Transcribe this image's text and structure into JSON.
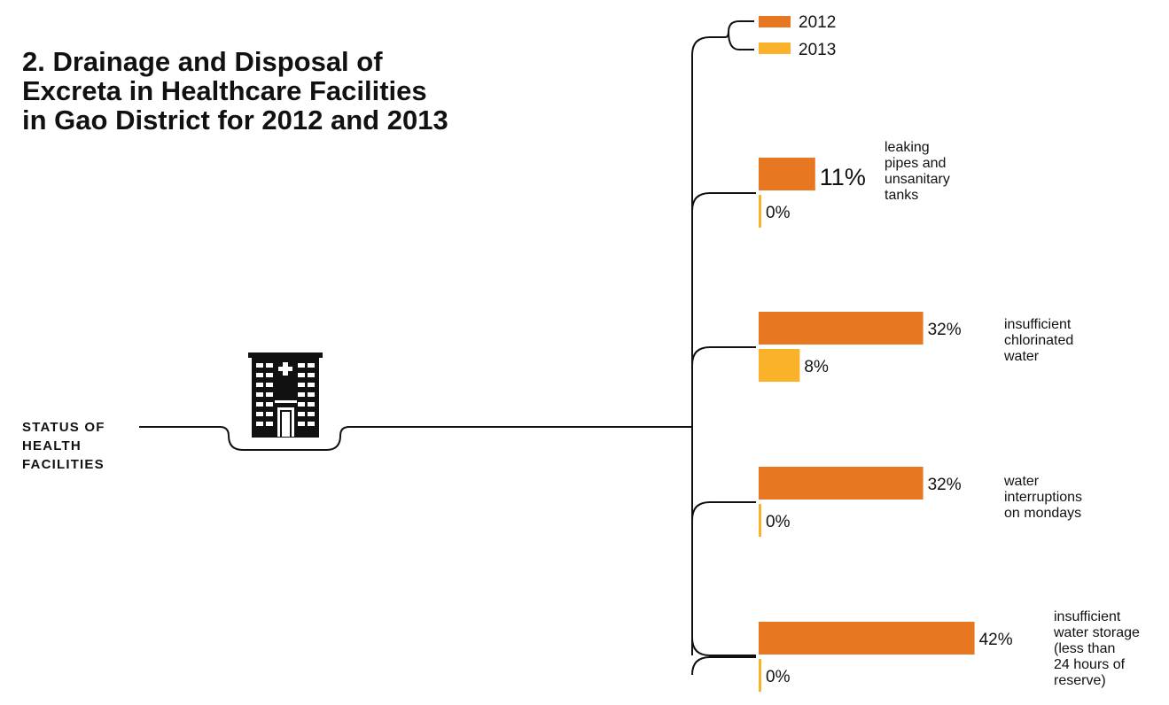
{
  "title_lines": [
    "2. Drainage and Disposal of",
    "Excreta in Healthcare Facilities",
    "in Gao District for 2012 and 2013"
  ],
  "status_label_lines": [
    "STATUS OF",
    "HEALTH",
    "FACILITIES"
  ],
  "icon": "hospital-building-icon",
  "colors": {
    "2012": "#E87722",
    "2013": "#FBB22B",
    "line": "#111111"
  },
  "chart_data": {
    "type": "bar",
    "orientation": "horizontal",
    "legend_position": "top-right",
    "value_unit": "%",
    "categories": [
      "leaking pipes and unsanitary tanks",
      "insufficient chlorinated water",
      "water interruptions on mondays",
      "insufficient water storage (less than 24 hours of reserve)"
    ],
    "category_label_lines": [
      [
        "leaking",
        "pipes and",
        "unsanitary",
        "tanks"
      ],
      [
        "insufficient",
        "chlorinated",
        "water"
      ],
      [
        "water",
        "interruptions",
        "on mondays"
      ],
      [
        "insufficient",
        "water storage",
        "(less than",
        "24 hours of",
        "reserve)"
      ]
    ],
    "series": [
      {
        "name": "2012",
        "values": [
          11,
          32,
          32,
          42
        ]
      },
      {
        "name": "2013",
        "values": [
          0,
          8,
          0,
          0
        ]
      }
    ],
    "value_labels": {
      "2012": [
        "11%",
        "32%",
        "32%",
        "42%"
      ],
      "2013": [
        "0%",
        "8%",
        "0%",
        "0%"
      ]
    }
  }
}
